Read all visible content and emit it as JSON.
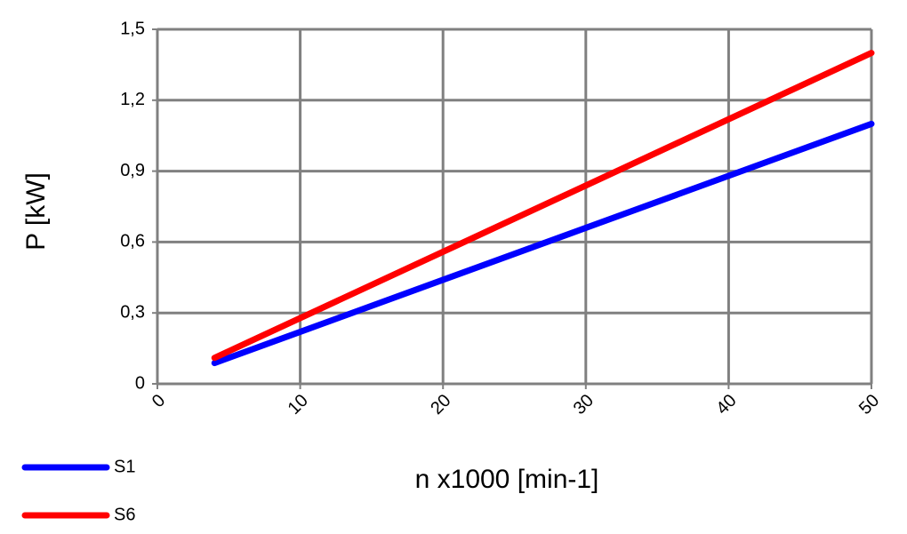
{
  "chart_data": {
    "type": "line",
    "x_label": "n x1000 [min-1]",
    "y_label": "P [kW]",
    "series": [
      {
        "name": "S1",
        "color": "#0000ff",
        "x": [
          4,
          50
        ],
        "values": [
          0.088,
          1.1
        ]
      },
      {
        "name": "S6",
        "color": "#ff0000",
        "x": [
          4,
          50
        ],
        "values": [
          0.11,
          1.4
        ]
      }
    ],
    "xlim": [
      0,
      50
    ],
    "xticks": [
      0,
      10,
      20,
      30,
      40,
      50
    ],
    "ylim": [
      0,
      1.5
    ],
    "yticks": [
      0,
      {
        "value": 0.3,
        "label": "0,3"
      },
      {
        "value": 0.6,
        "label": "0,6"
      },
      {
        "value": 0.9,
        "label": "0,9"
      },
      {
        "value": 1.2,
        "label": "1,2"
      },
      {
        "value": 1.5,
        "label": "1,5"
      }
    ],
    "grid": true,
    "legend": "bottom-left"
  }
}
